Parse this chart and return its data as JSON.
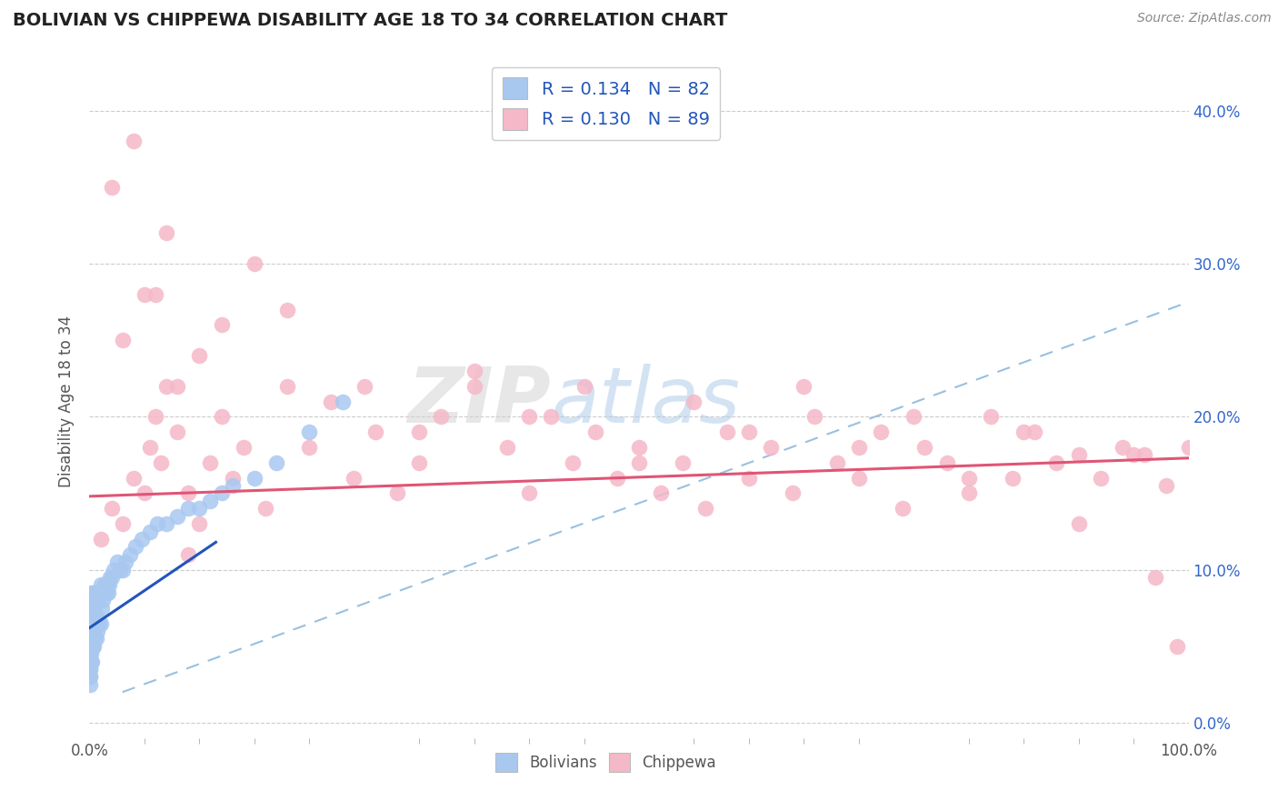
{
  "title": "BOLIVIAN VS CHIPPEWA DISABILITY AGE 18 TO 34 CORRELATION CHART",
  "source": "Source: ZipAtlas.com",
  "ylabel": "Disability Age 18 to 34",
  "xlim": [
    0.0,
    1.0
  ],
  "ylim": [
    -0.01,
    0.43
  ],
  "x_ticks": [
    0.0,
    0.25,
    0.5,
    0.75,
    1.0
  ],
  "x_tick_labels": [
    "0.0%",
    "",
    "",
    "",
    "100.0%"
  ],
  "y_ticks": [
    0.0,
    0.1,
    0.2,
    0.3,
    0.4
  ],
  "y_tick_labels": [
    "0.0%",
    "10.0%",
    "20.0%",
    "30.0%",
    "40.0%"
  ],
  "blue_color": "#A8C8F0",
  "pink_color": "#F5B8C8",
  "blue_line_color": "#2255BB",
  "pink_line_color": "#E05575",
  "dash_line_color": "#99C0E0",
  "R_blue": 0.134,
  "N_blue": 82,
  "R_pink": 0.13,
  "N_pink": 89,
  "legend_text_color": "#2255BB",
  "watermark_zip": "ZIP",
  "watermark_atlas": "atlas",
  "background_color": "#FFFFFF",
  "blue_trend_x": [
    0.0,
    0.115
  ],
  "blue_trend_y": [
    0.062,
    0.118
  ],
  "pink_trend_x": [
    0.0,
    1.0
  ],
  "pink_trend_y": [
    0.148,
    0.173
  ],
  "dash_trend_x": [
    0.03,
    1.0
  ],
  "dash_trend_y": [
    0.02,
    0.275
  ],
  "bolivia_x": [
    0.001,
    0.001,
    0.001,
    0.001,
    0.001,
    0.001,
    0.001,
    0.001,
    0.001,
    0.001,
    0.002,
    0.002,
    0.002,
    0.002,
    0.002,
    0.002,
    0.002,
    0.002,
    0.003,
    0.003,
    0.003,
    0.003,
    0.003,
    0.004,
    0.004,
    0.004,
    0.004,
    0.005,
    0.005,
    0.005,
    0.006,
    0.006,
    0.006,
    0.007,
    0.007,
    0.008,
    0.008,
    0.009,
    0.009,
    0.01,
    0.01,
    0.011,
    0.012,
    0.013,
    0.014,
    0.015,
    0.016,
    0.017,
    0.018,
    0.019,
    0.02,
    0.022,
    0.025,
    0.028,
    0.03,
    0.033,
    0.037,
    0.042,
    0.048,
    0.055,
    0.062,
    0.07,
    0.08,
    0.09,
    0.1,
    0.11,
    0.12,
    0.13,
    0.15,
    0.17,
    0.2,
    0.23,
    0.0005,
    0.0005,
    0.0005,
    0.0005,
    0.0005,
    0.0005,
    0.0005,
    0.0005,
    0.0005,
    0.0005,
    0.0005,
    0.0005
  ],
  "bolivia_y": [
    0.04,
    0.045,
    0.05,
    0.055,
    0.06,
    0.065,
    0.07,
    0.075,
    0.08,
    0.085,
    0.04,
    0.05,
    0.055,
    0.06,
    0.065,
    0.07,
    0.075,
    0.08,
    0.05,
    0.055,
    0.065,
    0.075,
    0.08,
    0.05,
    0.065,
    0.075,
    0.085,
    0.055,
    0.07,
    0.08,
    0.055,
    0.07,
    0.085,
    0.06,
    0.08,
    0.065,
    0.085,
    0.065,
    0.085,
    0.065,
    0.09,
    0.075,
    0.08,
    0.085,
    0.09,
    0.085,
    0.09,
    0.085,
    0.09,
    0.095,
    0.095,
    0.1,
    0.105,
    0.1,
    0.1,
    0.105,
    0.11,
    0.115,
    0.12,
    0.125,
    0.13,
    0.13,
    0.135,
    0.14,
    0.14,
    0.145,
    0.15,
    0.155,
    0.16,
    0.17,
    0.19,
    0.21,
    0.025,
    0.03,
    0.03,
    0.035,
    0.035,
    0.04,
    0.045,
    0.05,
    0.055,
    0.06,
    0.065,
    0.07
  ],
  "chippewa_x": [
    0.01,
    0.02,
    0.03,
    0.04,
    0.05,
    0.055,
    0.06,
    0.065,
    0.07,
    0.08,
    0.09,
    0.1,
    0.11,
    0.12,
    0.13,
    0.14,
    0.16,
    0.18,
    0.2,
    0.22,
    0.24,
    0.26,
    0.28,
    0.3,
    0.32,
    0.35,
    0.38,
    0.4,
    0.42,
    0.44,
    0.46,
    0.48,
    0.5,
    0.52,
    0.54,
    0.56,
    0.58,
    0.6,
    0.62,
    0.64,
    0.66,
    0.68,
    0.7,
    0.72,
    0.74,
    0.76,
    0.78,
    0.8,
    0.82,
    0.84,
    0.86,
    0.88,
    0.9,
    0.92,
    0.94,
    0.96,
    0.98,
    1.0,
    0.03,
    0.05,
    0.08,
    0.1,
    0.12,
    0.15,
    0.18,
    0.25,
    0.3,
    0.35,
    0.4,
    0.45,
    0.5,
    0.55,
    0.6,
    0.65,
    0.7,
    0.75,
    0.8,
    0.85,
    0.9,
    0.95,
    0.97,
    0.99,
    0.02,
    0.04,
    0.06,
    0.07,
    0.09
  ],
  "chippewa_y": [
    0.12,
    0.14,
    0.13,
    0.16,
    0.15,
    0.18,
    0.2,
    0.17,
    0.22,
    0.19,
    0.15,
    0.13,
    0.17,
    0.2,
    0.16,
    0.18,
    0.14,
    0.22,
    0.18,
    0.21,
    0.16,
    0.19,
    0.15,
    0.17,
    0.2,
    0.22,
    0.18,
    0.15,
    0.2,
    0.17,
    0.19,
    0.16,
    0.18,
    0.15,
    0.17,
    0.14,
    0.19,
    0.16,
    0.18,
    0.15,
    0.2,
    0.17,
    0.16,
    0.19,
    0.14,
    0.18,
    0.17,
    0.15,
    0.2,
    0.16,
    0.19,
    0.17,
    0.13,
    0.16,
    0.18,
    0.175,
    0.155,
    0.18,
    0.25,
    0.28,
    0.22,
    0.24,
    0.26,
    0.3,
    0.27,
    0.22,
    0.19,
    0.23,
    0.2,
    0.22,
    0.17,
    0.21,
    0.19,
    0.22,
    0.18,
    0.2,
    0.16,
    0.19,
    0.175,
    0.175,
    0.095,
    0.05,
    0.35,
    0.38,
    0.28,
    0.32,
    0.11
  ]
}
